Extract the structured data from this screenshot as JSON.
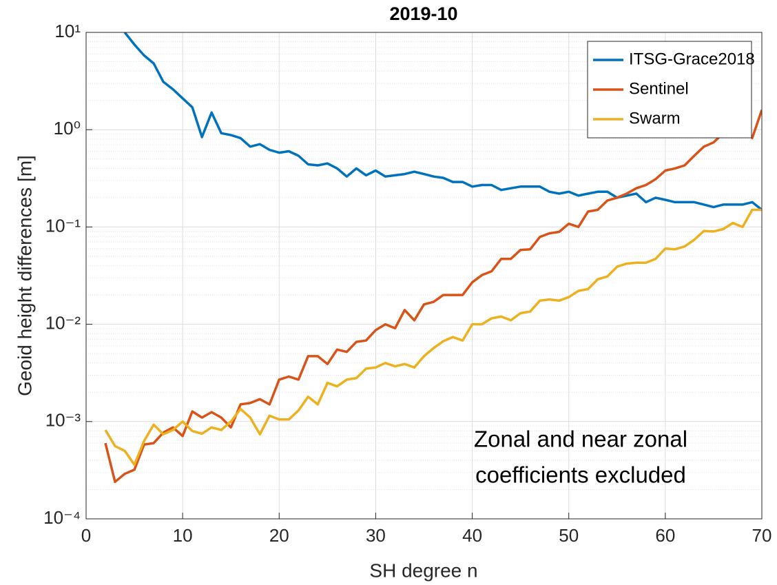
{
  "chart_data": {
    "type": "line",
    "title": "2019-10",
    "x_label": "SH degree n",
    "y_label": "Geoid height differences [m]",
    "annotation": [
      "Zonal and near zonal",
      "coefficients excluded"
    ],
    "x": [
      2,
      3,
      4,
      5,
      6,
      7,
      8,
      9,
      10,
      11,
      12,
      13,
      14,
      15,
      16,
      17,
      18,
      19,
      20,
      21,
      22,
      23,
      24,
      25,
      26,
      27,
      28,
      29,
      30,
      31,
      32,
      33,
      34,
      35,
      36,
      37,
      38,
      39,
      40,
      41,
      42,
      43,
      44,
      45,
      46,
      47,
      48,
      49,
      50,
      51,
      52,
      53,
      54,
      55,
      56,
      57,
      58,
      59,
      60,
      61,
      62,
      63,
      64,
      65,
      66,
      67,
      68,
      69,
      70
    ],
    "series": [
      {
        "name": "ITSG-Grace2018",
        "color": "#0072BD",
        "values": [
          null,
          null,
          10,
          7.5,
          5.8,
          4.8,
          3.1,
          2.6,
          2.1,
          1.7,
          0.84,
          1.5,
          0.92,
          0.88,
          0.82,
          0.67,
          0.71,
          0.62,
          0.58,
          0.6,
          0.54,
          0.44,
          0.43,
          0.45,
          0.4,
          0.33,
          0.4,
          0.34,
          0.38,
          0.33,
          0.34,
          0.35,
          0.37,
          0.35,
          0.33,
          0.32,
          0.29,
          0.29,
          0.26,
          0.27,
          0.27,
          0.24,
          0.25,
          0.26,
          0.26,
          0.26,
          0.23,
          0.22,
          0.23,
          0.21,
          0.22,
          0.23,
          0.23,
          0.2,
          0.21,
          0.22,
          0.18,
          0.2,
          0.19,
          0.18,
          0.18,
          0.18,
          0.17,
          0.16,
          0.17,
          0.17,
          0.17,
          0.18,
          0.15
        ]
      },
      {
        "name": "Sentinel",
        "color": "#D95319",
        "values": [
          0.0006,
          0.00024,
          0.00029,
          0.00032,
          0.00058,
          0.0006,
          0.00077,
          0.00087,
          0.00071,
          0.00127,
          0.0011,
          0.00125,
          0.0011,
          0.00087,
          0.0015,
          0.00155,
          0.0017,
          0.0015,
          0.0027,
          0.0029,
          0.0027,
          0.0047,
          0.0047,
          0.0039,
          0.0055,
          0.0052,
          0.0066,
          0.0068,
          0.0087,
          0.01,
          0.0091,
          0.014,
          0.011,
          0.016,
          0.017,
          0.02,
          0.02,
          0.02,
          0.027,
          0.032,
          0.035,
          0.047,
          0.047,
          0.058,
          0.059,
          0.079,
          0.086,
          0.089,
          0.108,
          0.1,
          0.144,
          0.15,
          0.187,
          0.2,
          0.22,
          0.25,
          0.27,
          0.31,
          0.38,
          0.4,
          0.43,
          0.54,
          0.67,
          0.74,
          0.92,
          1.04,
          1.2,
          0.82,
          1.6
        ]
      },
      {
        "name": "Swarm",
        "color": "#EDB120",
        "values": [
          0.00082,
          0.00056,
          0.0005,
          0.00036,
          0.00063,
          0.00093,
          0.00074,
          0.00082,
          0.001,
          0.0008,
          0.00075,
          0.00087,
          0.00082,
          0.001,
          0.00135,
          0.0011,
          0.00074,
          0.00115,
          0.00105,
          0.00105,
          0.0013,
          0.0018,
          0.0015,
          0.0025,
          0.0023,
          0.0027,
          0.0028,
          0.0035,
          0.0036,
          0.004,
          0.0037,
          0.0039,
          0.0036,
          0.0047,
          0.0057,
          0.0067,
          0.0074,
          0.0068,
          0.01,
          0.01,
          0.0115,
          0.012,
          0.011,
          0.013,
          0.0135,
          0.0175,
          0.018,
          0.0175,
          0.019,
          0.022,
          0.023,
          0.029,
          0.031,
          0.039,
          0.042,
          0.043,
          0.043,
          0.047,
          0.06,
          0.059,
          0.063,
          0.074,
          0.091,
          0.09,
          0.095,
          0.11,
          0.1,
          0.15,
          0.15
        ]
      }
    ],
    "xlim": [
      0,
      70
    ],
    "xticks": [
      0,
      10,
      20,
      30,
      40,
      50,
      60,
      70
    ],
    "ylim": [
      0.0001,
      10
    ],
    "log_y": true,
    "yticks": [
      {
        "value": 10,
        "label": "10¹"
      },
      {
        "value": 1,
        "label": "10⁰"
      },
      {
        "value": 0.1,
        "label": "10⁻¹"
      },
      {
        "value": 0.01,
        "label": "10⁻²"
      },
      {
        "value": 0.001,
        "label": "10⁻³"
      },
      {
        "value": 0.0001,
        "label": "10⁻⁴"
      }
    ],
    "grid": true,
    "minor_grid": true,
    "legend": "upper right"
  }
}
